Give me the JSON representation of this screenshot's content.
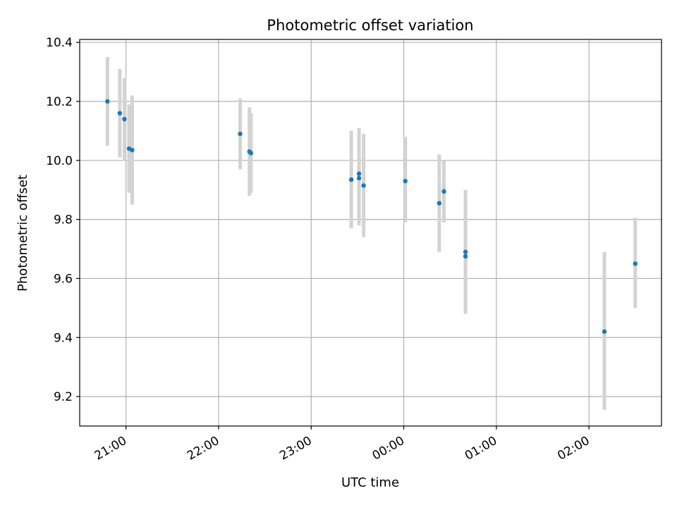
{
  "chart_data": {
    "type": "scatter",
    "title": "Photometric offset variation",
    "xlabel": "UTC time",
    "ylabel": "Photometric offset",
    "x_axis": "time",
    "xlim": [
      "20:30",
      "02:47"
    ],
    "ylim": [
      9.1,
      10.41
    ],
    "grid": true,
    "xticks": [
      "21:00",
      "22:00",
      "23:00",
      "00:00",
      "01:00",
      "02:00"
    ],
    "yticks": [
      9.2,
      9.4,
      9.6,
      9.8,
      10.0,
      10.2,
      10.4
    ],
    "colors": {
      "marker": "#1f77b4",
      "errorbar": "#d3d3d3",
      "grid": "#b0b0b0"
    },
    "points": [
      {
        "x": "20:48",
        "y": 10.2,
        "ylow": 10.05,
        "yhigh": 10.35
      },
      {
        "x": "20:56",
        "y": 10.16,
        "ylow": 10.01,
        "yhigh": 10.31
      },
      {
        "x": "20:59",
        "y": 10.14,
        "ylow": 10.0,
        "yhigh": 10.28
      },
      {
        "x": "21:02",
        "y": 10.04,
        "ylow": 9.89,
        "yhigh": 10.19
      },
      {
        "x": "21:04",
        "y": 10.035,
        "ylow": 9.85,
        "yhigh": 10.22
      },
      {
        "x": "22:14",
        "y": 10.09,
        "ylow": 9.97,
        "yhigh": 10.21
      },
      {
        "x": "22:20",
        "y": 10.03,
        "ylow": 9.88,
        "yhigh": 10.18
      },
      {
        "x": "22:21",
        "y": 10.025,
        "ylow": 9.89,
        "yhigh": 10.16
      },
      {
        "x": "23:26",
        "y": 9.935,
        "ylow": 9.77,
        "yhigh": 10.1
      },
      {
        "x": "23:31",
        "y": 9.955,
        "ylow": 9.8,
        "yhigh": 10.11
      },
      {
        "x": "23:31",
        "y": 9.94,
        "ylow": 9.78,
        "yhigh": 10.09
      },
      {
        "x": "23:34",
        "y": 9.915,
        "ylow": 9.74,
        "yhigh": 10.09
      },
      {
        "x": "00:01",
        "y": 9.93,
        "ylow": 9.79,
        "yhigh": 10.08
      },
      {
        "x": "00:23",
        "y": 9.855,
        "ylow": 9.69,
        "yhigh": 10.02
      },
      {
        "x": "00:26",
        "y": 9.895,
        "ylow": 9.79,
        "yhigh": 10.0
      },
      {
        "x": "00:40",
        "y": 9.69,
        "ylow": 9.48,
        "yhigh": 9.9
      },
      {
        "x": "00:40",
        "y": 9.675,
        "ylow": 9.49,
        "yhigh": 9.86
      },
      {
        "x": "02:10",
        "y": 9.42,
        "ylow": 9.155,
        "yhigh": 9.69
      },
      {
        "x": "02:30",
        "y": 9.65,
        "ylow": 9.5,
        "yhigh": 9.805
      }
    ]
  }
}
